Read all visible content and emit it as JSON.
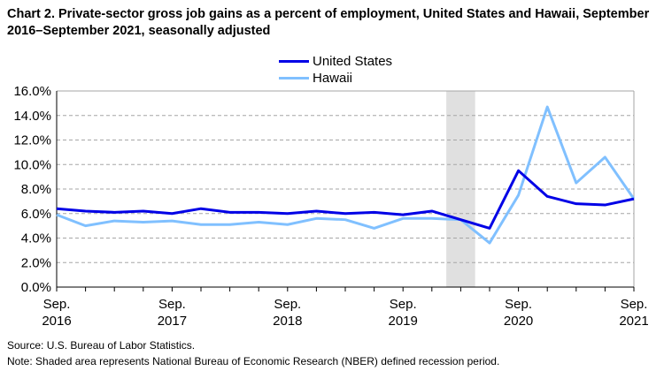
{
  "chart_data": {
    "type": "line",
    "title": "Chart 2. Private-sector gross job gains as a percent of employment, United States and Hawaii, September 2016–September 2021, seasonally adjusted",
    "xlabel": "",
    "ylabel": "",
    "ylim": [
      0,
      16
    ],
    "yticks": [
      "0.0%",
      "2.0%",
      "4.0%",
      "6.0%",
      "8.0%",
      "10.0%",
      "12.0%",
      "14.0%",
      "16.0%"
    ],
    "xtick_labels": [
      [
        "Sep.",
        "2016"
      ],
      [
        "Sep.",
        "2017"
      ],
      [
        "Sep.",
        "2018"
      ],
      [
        "Sep.",
        "2019"
      ],
      [
        "Sep.",
        "2020"
      ],
      [
        "Sep.",
        "2021"
      ]
    ],
    "x": [
      "Sep 2016",
      "Dec 2016",
      "Mar 2017",
      "Jun 2017",
      "Sep 2017",
      "Dec 2017",
      "Mar 2018",
      "Jun 2018",
      "Sep 2018",
      "Dec 2018",
      "Mar 2019",
      "Jun 2019",
      "Sep 2019",
      "Dec 2019",
      "Mar 2020",
      "Jun 2020",
      "Sep 2020",
      "Dec 2020",
      "Mar 2021",
      "Jun 2021",
      "Sep 2021"
    ],
    "series": [
      {
        "name": "United States",
        "color": "#0000E6",
        "values": [
          6.4,
          6.2,
          6.1,
          6.2,
          6.0,
          6.4,
          6.1,
          6.1,
          6.0,
          6.2,
          6.0,
          6.1,
          5.9,
          6.2,
          5.5,
          4.8,
          9.5,
          7.4,
          6.8,
          6.7,
          7.2
        ]
      },
      {
        "name": "Hawaii",
        "color": "#80C0FF",
        "values": [
          5.9,
          5.0,
          5.4,
          5.3,
          5.4,
          5.1,
          5.1,
          5.3,
          5.1,
          5.6,
          5.5,
          4.8,
          5.6,
          5.6,
          5.5,
          3.6,
          7.5,
          14.7,
          8.5,
          10.6,
          7.2
        ]
      }
    ],
    "recession_shading": {
      "from_index": 13.5,
      "to_index": 14.5
    },
    "grid": true,
    "legend_placement": "top-center"
  },
  "source": "Source: U.S. Bureau of Labor Statistics.",
  "note": "Note: Shaded area represents National Bureau of Economic Research (NBER) defined recession period."
}
